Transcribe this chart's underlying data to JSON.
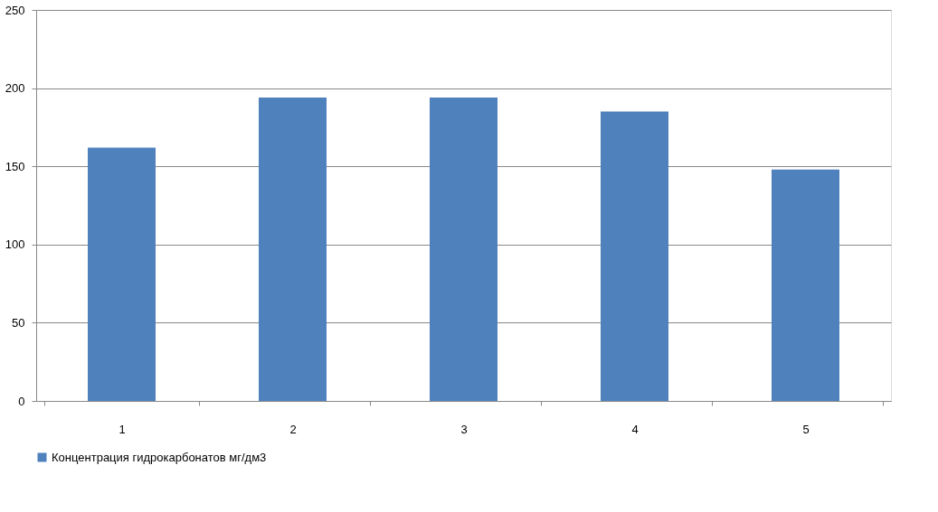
{
  "chart_data": {
    "type": "bar",
    "categories": [
      "1",
      "2",
      "3",
      "4",
      "5"
    ],
    "series": [
      {
        "name": "Концентрация гидрокарбонатов мг/дм3",
        "color": "#4f81bd",
        "values": [
          162,
          194,
          194,
          185,
          148
        ]
      }
    ],
    "ylim": [
      0,
      250
    ],
    "yticks": [
      0,
      50,
      100,
      150,
      200,
      250
    ],
    "grid": "y",
    "legend": "bottom"
  }
}
